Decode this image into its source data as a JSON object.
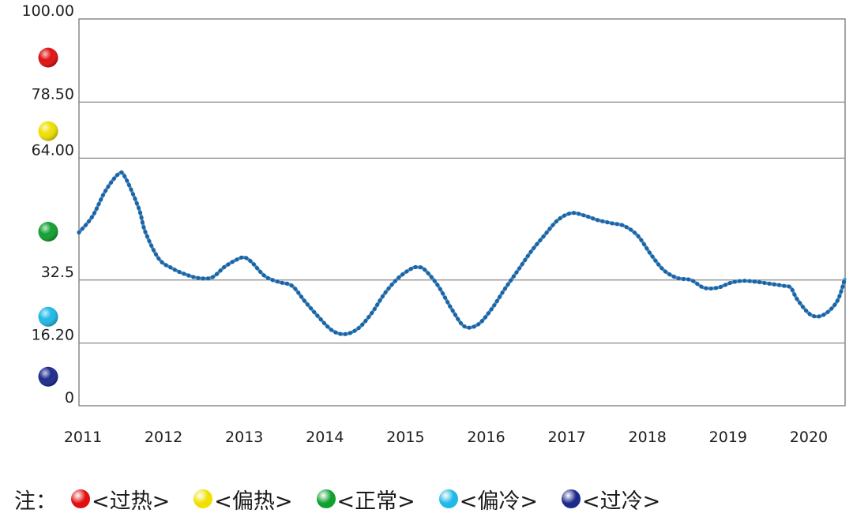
{
  "chart_data": {
    "type": "line",
    "title": "",
    "xlabel": "",
    "ylabel": "",
    "x_tick_labels": [
      "2011",
      "2012",
      "2013",
      "2014",
      "2015",
      "2016",
      "2017",
      "2018",
      "2019",
      "2020"
    ],
    "y_ticks": [
      {
        "value": 0,
        "label": "0"
      },
      {
        "value": 16.2,
        "label": "16.20"
      },
      {
        "value": 32.5,
        "label": "32.5"
      },
      {
        "value": 64,
        "label": "64.00"
      },
      {
        "value": 78.5,
        "label": "78.50"
      },
      {
        "value": 100,
        "label": "100.00"
      }
    ],
    "ylim": [
      0,
      100
    ],
    "grid": "horizontal",
    "zones": [
      {
        "name": "过热",
        "color": "#e01010",
        "value": 90
      },
      {
        "name": "偏热",
        "color": "#f0e000",
        "value": 71
      },
      {
        "name": "正常",
        "color": "#10a030",
        "value": 45
      },
      {
        "name": "偏冷",
        "color": "#20b8e8",
        "value": 23
      },
      {
        "name": "过冷",
        "color": "#1c2a8c",
        "value": 7.5
      }
    ],
    "series": [
      {
        "line_color": "#29a8dc",
        "marker_color": "#2a5e9e",
        "points": [
          [
            2011.0,
            44.8
          ],
          [
            2011.17,
            49
          ],
          [
            2011.33,
            55.5
          ],
          [
            2011.5,
            60
          ],
          [
            2011.58,
            59
          ],
          [
            2011.75,
            51
          ],
          [
            2011.83,
            45
          ],
          [
            2012.0,
            38
          ],
          [
            2012.17,
            35.5
          ],
          [
            2012.33,
            34
          ],
          [
            2012.5,
            33
          ],
          [
            2012.67,
            33.2
          ],
          [
            2012.83,
            36
          ],
          [
            2013.0,
            38
          ],
          [
            2013.08,
            38.3
          ],
          [
            2013.17,
            37
          ],
          [
            2013.33,
            33.5
          ],
          [
            2013.5,
            32
          ],
          [
            2013.67,
            31
          ],
          [
            2013.83,
            27
          ],
          [
            2014.0,
            23
          ],
          [
            2014.17,
            19.5
          ],
          [
            2014.33,
            18.5
          ],
          [
            2014.5,
            20
          ],
          [
            2014.67,
            24
          ],
          [
            2014.83,
            29
          ],
          [
            2015.0,
            33
          ],
          [
            2015.17,
            35.5
          ],
          [
            2015.25,
            35.8
          ],
          [
            2015.33,
            35.2
          ],
          [
            2015.5,
            31
          ],
          [
            2015.67,
            25
          ],
          [
            2015.83,
            20.5
          ],
          [
            2016.0,
            21
          ],
          [
            2016.17,
            25
          ],
          [
            2016.33,
            30
          ],
          [
            2016.5,
            35
          ],
          [
            2016.67,
            40
          ],
          [
            2016.83,
            44
          ],
          [
            2017.0,
            48
          ],
          [
            2017.17,
            49.8
          ],
          [
            2017.33,
            49.2
          ],
          [
            2017.5,
            48
          ],
          [
            2017.67,
            47.2
          ],
          [
            2017.83,
            46.5
          ],
          [
            2018.0,
            44
          ],
          [
            2018.17,
            39
          ],
          [
            2018.33,
            35
          ],
          [
            2018.5,
            33
          ],
          [
            2018.67,
            32.5
          ],
          [
            2018.83,
            30.5
          ],
          [
            2019.0,
            30.5
          ],
          [
            2019.17,
            31.8
          ],
          [
            2019.33,
            32.3
          ],
          [
            2019.5,
            32
          ],
          [
            2019.67,
            31.5
          ],
          [
            2019.83,
            31
          ],
          [
            2019.92,
            30.5
          ],
          [
            2020.0,
            27.5
          ],
          [
            2020.17,
            23.5
          ],
          [
            2020.33,
            23.5
          ],
          [
            2020.5,
            27
          ],
          [
            2020.6,
            33
          ]
        ]
      }
    ]
  },
  "legend": {
    "prefix": "注：",
    "items": [
      {
        "label": "<过热>",
        "color": "#e01010"
      },
      {
        "label": "<偏热>",
        "color": "#f0e000"
      },
      {
        "label": "<正常>",
        "color": "#10a030"
      },
      {
        "label": "<偏冷>",
        "color": "#20b8e8"
      },
      {
        "label": "<过冷>",
        "color": "#1c2a8c"
      }
    ]
  }
}
